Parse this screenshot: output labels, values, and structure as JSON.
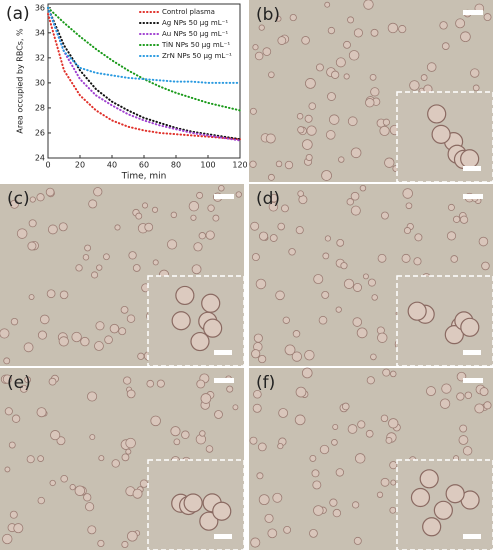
{
  "chart_data": {
    "type": "line",
    "xlabel": "Time, min",
    "ylabel": "Area occupied by RBCs, %",
    "x": [
      0,
      10,
      20,
      30,
      40,
      50,
      60,
      70,
      80,
      90,
      100,
      110,
      120
    ],
    "series": [
      {
        "name": "Control plasma",
        "color": "#e0302a",
        "values": [
          35.5,
          31,
          29,
          27.8,
          27,
          26.5,
          26.2,
          26,
          25.9,
          25.8,
          25.7,
          25.6,
          25.5
        ]
      },
      {
        "name": "Ag NPs 50 μg mL⁻¹",
        "color": "#111111",
        "values": [
          36,
          33,
          31,
          29.5,
          28.5,
          27.8,
          27.2,
          26.8,
          26.4,
          26.1,
          25.9,
          25.7,
          25.5
        ]
      },
      {
        "name": "Au NPs 50 μg mL⁻¹",
        "color": "#a040d0",
        "values": [
          36,
          32.5,
          30.3,
          29,
          28.2,
          27.5,
          27,
          26.6,
          26.3,
          26,
          25.8,
          25.6,
          25.4
        ]
      },
      {
        "name": "TiN NPs 50 μg mL⁻¹",
        "color": "#1a9a1a",
        "values": [
          36,
          34.8,
          33.7,
          32.7,
          31.8,
          31,
          30.3,
          29.7,
          29.2,
          28.8,
          28.4,
          28.1,
          27.8
        ]
      },
      {
        "name": "ZrN NPs 50 μg mL⁻¹",
        "color": "#2a9ae0",
        "values": [
          36,
          32.5,
          31.2,
          30.8,
          30.6,
          30.4,
          30.3,
          30.2,
          30.1,
          30.1,
          30,
          30,
          30
        ]
      }
    ],
    "xlim": [
      0,
      120
    ],
    "xticks": [
      0,
      20,
      40,
      60,
      80,
      100,
      120
    ],
    "ylim": [
      24,
      36.3
    ],
    "yticks": [
      24,
      26,
      28,
      30,
      32,
      34,
      36
    ],
    "legend": "upper right"
  },
  "panel_labels": [
    "(a)",
    "(b)",
    "(c)",
    "(d)",
    "(e)",
    "(f)"
  ]
}
